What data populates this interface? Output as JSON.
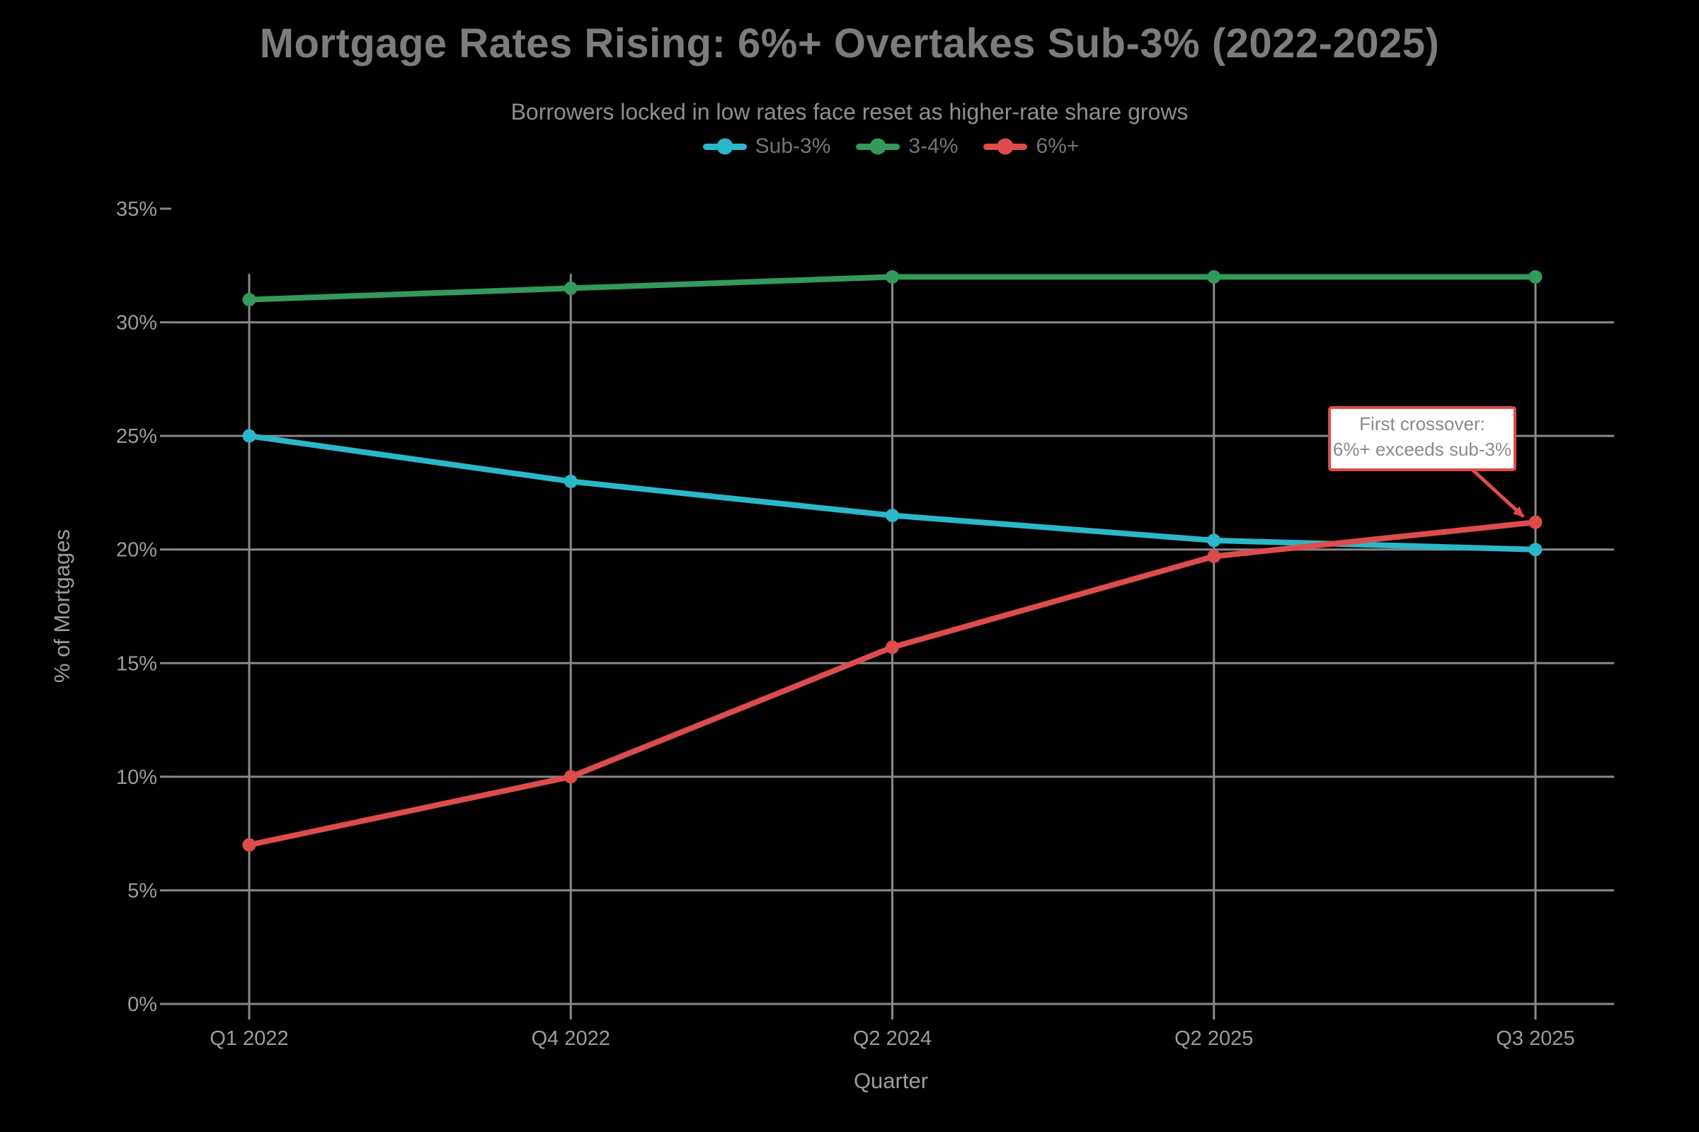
{
  "title": {
    "text": "Mortgage Rates Rising: 6%+ Overtakes Sub-3% (2022-2025)"
  },
  "subtitle": {
    "text": "Borrowers locked in low rates face reset as higher-rate share grows"
  },
  "chart_data": {
    "type": "line",
    "categories": [
      "Q1 2022",
      "Q4 2022",
      "Q2 2024",
      "Q2 2025",
      "Q3 2025"
    ],
    "series": [
      {
        "name": "Sub-3%",
        "color": "#2bb7ca",
        "marker": "circle",
        "values": [
          25,
          23,
          21.5,
          20.4,
          20
        ]
      },
      {
        "name": "3-4%",
        "color": "#339a5b",
        "marker": "circle",
        "values": [
          31,
          31.5,
          32,
          32,
          32
        ]
      },
      {
        "name": "6%+",
        "color": "#dd4c4c",
        "marker": "circle",
        "values": [
          7,
          10,
          15.7,
          19.7,
          21.2
        ]
      }
    ],
    "xlabel": "Quarter",
    "ylabel": "% of Mortgages",
    "ylim": [
      0,
      35
    ],
    "ytick_step": 5,
    "ytick_suffix": "%",
    "grid": true,
    "legend_position": "top-center",
    "annotation": {
      "line1": "First crossover:",
      "line2": "6%+ exceeds sub-3%",
      "target_series": "6%+",
      "target_category": "Q3 2025",
      "box_fill": "#ffffff",
      "box_border": "#dd4c4c",
      "text_color": "#8a8a8a"
    }
  },
  "colors": {
    "background": "#000000",
    "title": "#7c7c7c",
    "subtitle": "#8f8f8f",
    "legend_label": "#757575",
    "grid": "#898989",
    "tick_label": "#9c9c9c",
    "axis_title": "#9c9c9c"
  }
}
